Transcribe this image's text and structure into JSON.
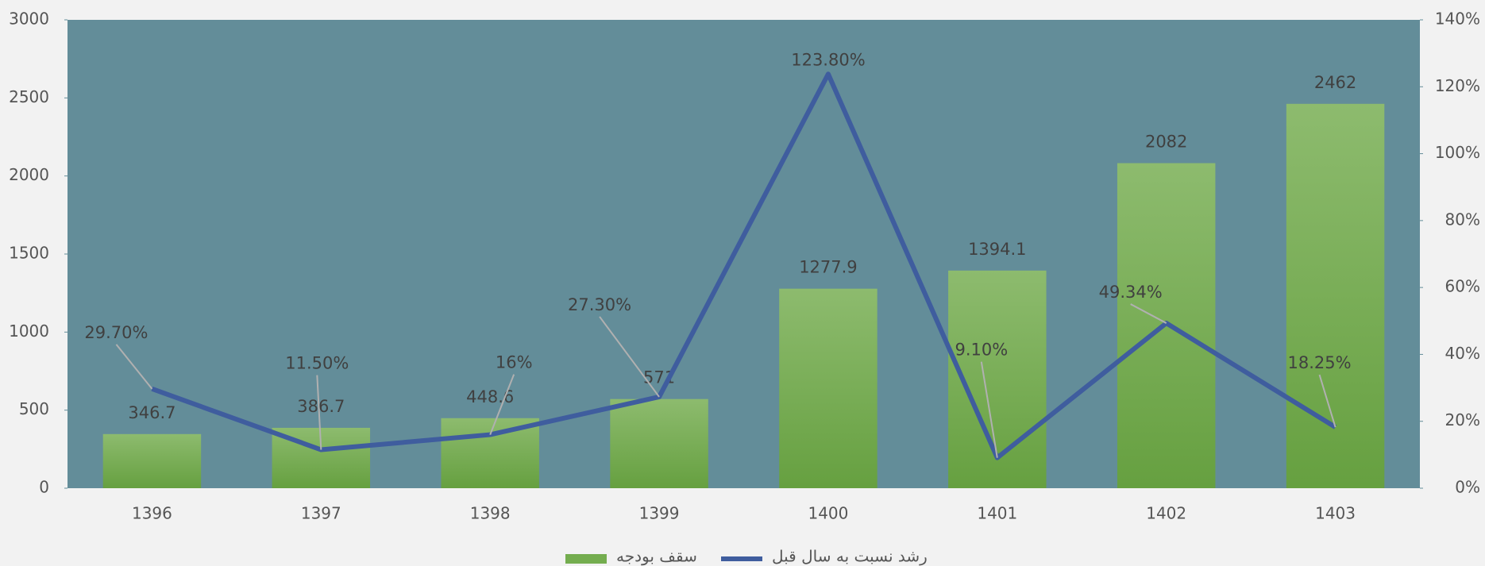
{
  "chart_data": {
    "type": "bar",
    "categories": [
      "1396",
      "1397",
      "1398",
      "1399",
      "1400",
      "1401",
      "1402",
      "1403"
    ],
    "series": [
      {
        "name": "سقف بودجه",
        "color": "#74ad4f",
        "type": "bar",
        "values": [
          346.7,
          386.7,
          448.6,
          571,
          1277.9,
          1394.1,
          2082,
          2462
        ]
      },
      {
        "name": "رشد نسبت به سال قبل",
        "color": "#3f5d9e",
        "type": "line",
        "axis": "y2",
        "values": [
          29.7,
          11.5,
          16,
          27.3,
          123.8,
          9.1,
          49.34,
          18.25
        ],
        "value_labels": [
          "29.70%",
          "11.50%",
          "16%",
          "27.30%",
          "123.80%",
          "9.10%",
          "49.34%",
          "18.25%"
        ]
      }
    ],
    "ylim": [
      0,
      3000
    ],
    "yticks": [
      0,
      500,
      1000,
      1500,
      2000,
      2500,
      3000
    ],
    "y2lim": [
      0,
      140
    ],
    "y2ticks": [
      {
        "value": 0,
        "label": "0%"
      },
      {
        "value": 20,
        "label": "20%"
      },
      {
        "value": 40,
        "label": "40%"
      },
      {
        "value": 60,
        "label": "60%"
      },
      {
        "value": 80,
        "label": "80%"
      },
      {
        "value": 100,
        "label": "100%"
      },
      {
        "value": 120,
        "label": "120%"
      },
      {
        "value": 140,
        "label": "140%"
      }
    ],
    "legend": "bottom"
  }
}
